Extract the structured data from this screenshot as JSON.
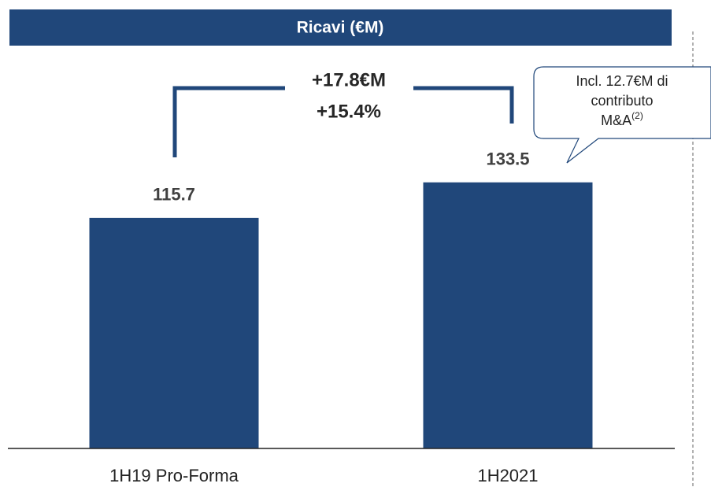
{
  "chart_data": {
    "type": "bar",
    "title": "Ricavi (€M)",
    "categories": [
      "1H19 Pro-Forma",
      "1H2021"
    ],
    "values": [
      115.7,
      133.5
    ],
    "color": "#20477a",
    "ylim": [
      0,
      225
    ],
    "annotations": {
      "delta_abs": "+17.8€M",
      "delta_pct": "+15.4%",
      "callout": [
        "Incl. 12.7€M di",
        "contributo",
        "M&A"
      ],
      "callout_sup": "(2)"
    }
  }
}
